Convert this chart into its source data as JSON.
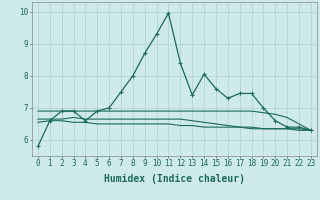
{
  "xlabel": "Humidex (Indice chaleur)",
  "background_color": "#ceeaea",
  "grid_color": "#b0d0d0",
  "line_color": "#1a6b5a",
  "x": [
    0,
    1,
    2,
    3,
    4,
    5,
    6,
    7,
    8,
    9,
    10,
    11,
    12,
    13,
    14,
    15,
    16,
    17,
    18,
    19,
    20,
    21,
    22,
    23
  ],
  "line1": [
    5.8,
    6.6,
    6.9,
    6.9,
    6.6,
    6.9,
    7.0,
    7.5,
    8.0,
    8.7,
    9.3,
    9.95,
    8.4,
    7.4,
    8.05,
    7.6,
    7.3,
    7.45,
    7.45,
    7.0,
    6.6,
    6.4,
    6.4,
    6.3
  ],
  "line2": [
    6.9,
    6.9,
    6.9,
    6.9,
    6.9,
    6.9,
    6.9,
    6.9,
    6.9,
    6.9,
    6.9,
    6.9,
    6.9,
    6.9,
    6.9,
    6.9,
    6.9,
    6.9,
    6.9,
    6.85,
    6.8,
    6.7,
    6.5,
    6.3
  ],
  "line3": [
    6.65,
    6.65,
    6.65,
    6.7,
    6.65,
    6.65,
    6.65,
    6.65,
    6.65,
    6.65,
    6.65,
    6.65,
    6.65,
    6.6,
    6.55,
    6.5,
    6.45,
    6.4,
    6.4,
    6.35,
    6.35,
    6.35,
    6.35,
    6.3
  ],
  "line4": [
    6.55,
    6.6,
    6.6,
    6.55,
    6.55,
    6.5,
    6.5,
    6.5,
    6.5,
    6.5,
    6.5,
    6.5,
    6.45,
    6.45,
    6.4,
    6.4,
    6.4,
    6.4,
    6.35,
    6.35,
    6.35,
    6.35,
    6.3,
    6.3
  ],
  "ylim": [
    5.5,
    10.3
  ],
  "yticks": [
    6,
    7,
    8,
    9,
    10
  ],
  "xticks": [
    0,
    1,
    2,
    3,
    4,
    5,
    6,
    7,
    8,
    9,
    10,
    11,
    12,
    13,
    14,
    15,
    16,
    17,
    18,
    19,
    20,
    21,
    22,
    23
  ],
  "tick_fontsize": 5.5,
  "xlabel_fontsize": 7.0
}
